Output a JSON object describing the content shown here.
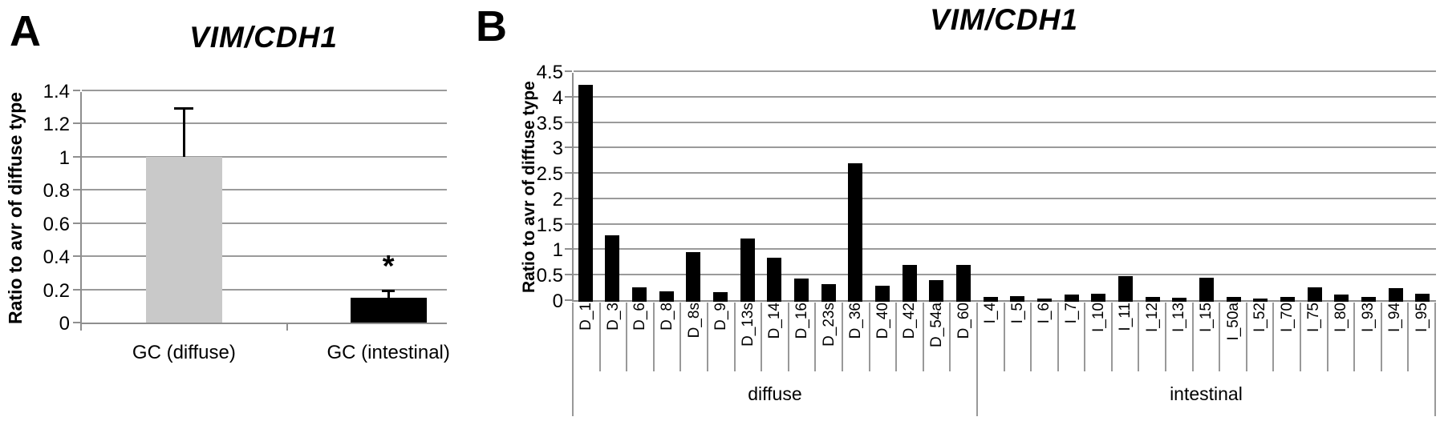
{
  "figure": {
    "panel_a": {
      "panel_label": "A",
      "title": "VIM/CDH1",
      "ylabel": "Ratio to avr of diffuse type"
    },
    "panel_b": {
      "panel_label": "B",
      "title": "VIM/CDH1",
      "ylabel": "Ratio to avr of diffuse type"
    }
  },
  "chart_data": [
    {
      "panel": "A",
      "type": "bar",
      "title": "VIM/CDH1",
      "ylabel": "Ratio to avr of diffuse type",
      "xlabel": "",
      "categories": [
        "GC (diffuse)",
        "GC (intestinal)"
      ],
      "values": [
        1.0,
        0.15
      ],
      "error_upper": [
        0.29,
        0.04
      ],
      "bar_colors": [
        "#c9c9c9",
        "#000000"
      ],
      "annotations": [
        {
          "text": "*",
          "category_index": 1,
          "meaning": "significant difference"
        }
      ],
      "ylim": [
        0,
        1.4
      ],
      "yticks": [
        0,
        0.2,
        0.4,
        0.6,
        0.8,
        1,
        1.2,
        1.4
      ],
      "grid": true,
      "legend": "none"
    },
    {
      "panel": "B",
      "type": "bar",
      "title": "VIM/CDH1",
      "ylabel": "Ratio to avr of diffuse type",
      "xlabel": "",
      "bar_color": "#000000",
      "ylim": [
        0,
        4.5
      ],
      "yticks": [
        0,
        0.5,
        1,
        1.5,
        2,
        2.5,
        3,
        3.5,
        4,
        4.5
      ],
      "grid": true,
      "legend": "none",
      "groups": [
        {
          "label": "diffuse",
          "categories": [
            "D_1",
            "D_3",
            "D_6",
            "D_8",
            "D_8s",
            "D_9",
            "D_13s",
            "D_14",
            "D_16",
            "D_23s",
            "D_36",
            "D_40",
            "D_42",
            "D_54a",
            "D_60"
          ],
          "values": [
            4.27,
            1.3,
            0.28,
            0.21,
            0.98,
            0.19,
            1.24,
            0.87,
            0.46,
            0.34,
            2.73,
            0.32,
            0.72,
            0.43,
            0.73
          ]
        },
        {
          "label": "intestinal",
          "categories": [
            "I_4",
            "I_5",
            "I_6",
            "I_7",
            "I_10",
            "I_11",
            "I_12",
            "I_13",
            "I_15",
            "I_50a",
            "I_52",
            "I_70",
            "I_75",
            "I_80",
            "I_93",
            "I_94",
            "I_95"
          ],
          "values": [
            0.09,
            0.11,
            0.07,
            0.14,
            0.16,
            0.5,
            0.1,
            0.08,
            0.48,
            0.1,
            0.07,
            0.1,
            0.28,
            0.14,
            0.1,
            0.27,
            0.16
          ]
        }
      ]
    }
  ]
}
